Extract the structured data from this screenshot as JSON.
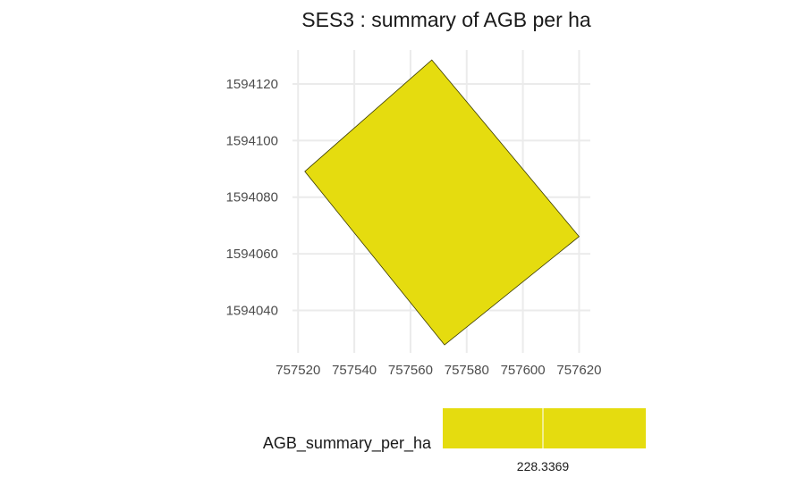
{
  "chart_data": {
    "type": "map",
    "title": "SES3 : summary of AGB per ha",
    "xlabel": "",
    "ylabel": "",
    "xlim": [
      757518,
      757624
    ],
    "ylim": [
      1594025,
      1594132
    ],
    "x_ticks": [
      757520,
      757540,
      757560,
      757580,
      757600,
      757620
    ],
    "y_ticks": [
      1594040,
      1594060,
      1594080,
      1594100,
      1594120
    ],
    "x_tick_labels": [
      "757520",
      "757540",
      "757560",
      "757580",
      "757600",
      "757620"
    ],
    "y_tick_labels": [
      "1594040",
      "1594060",
      "1594080",
      "1594100",
      "1594120"
    ],
    "grid": true,
    "polygons": [
      {
        "value": 228.3369,
        "fill": "#E5DC0F",
        "stroke": "#3a3a00",
        "coordinates": [
          [
            757567.6,
            1594128.5
          ],
          [
            757620.0,
            1594066.1
          ],
          [
            757572.1,
            1594027.8
          ],
          [
            757522.4,
            1594089.1
          ]
        ]
      }
    ],
    "legend": {
      "title": "AGB_summary_per_ha",
      "position": "bottom",
      "colorbar_color": "#E5DC0F",
      "break_value": 228.3369,
      "break_label": "228.3369"
    }
  }
}
